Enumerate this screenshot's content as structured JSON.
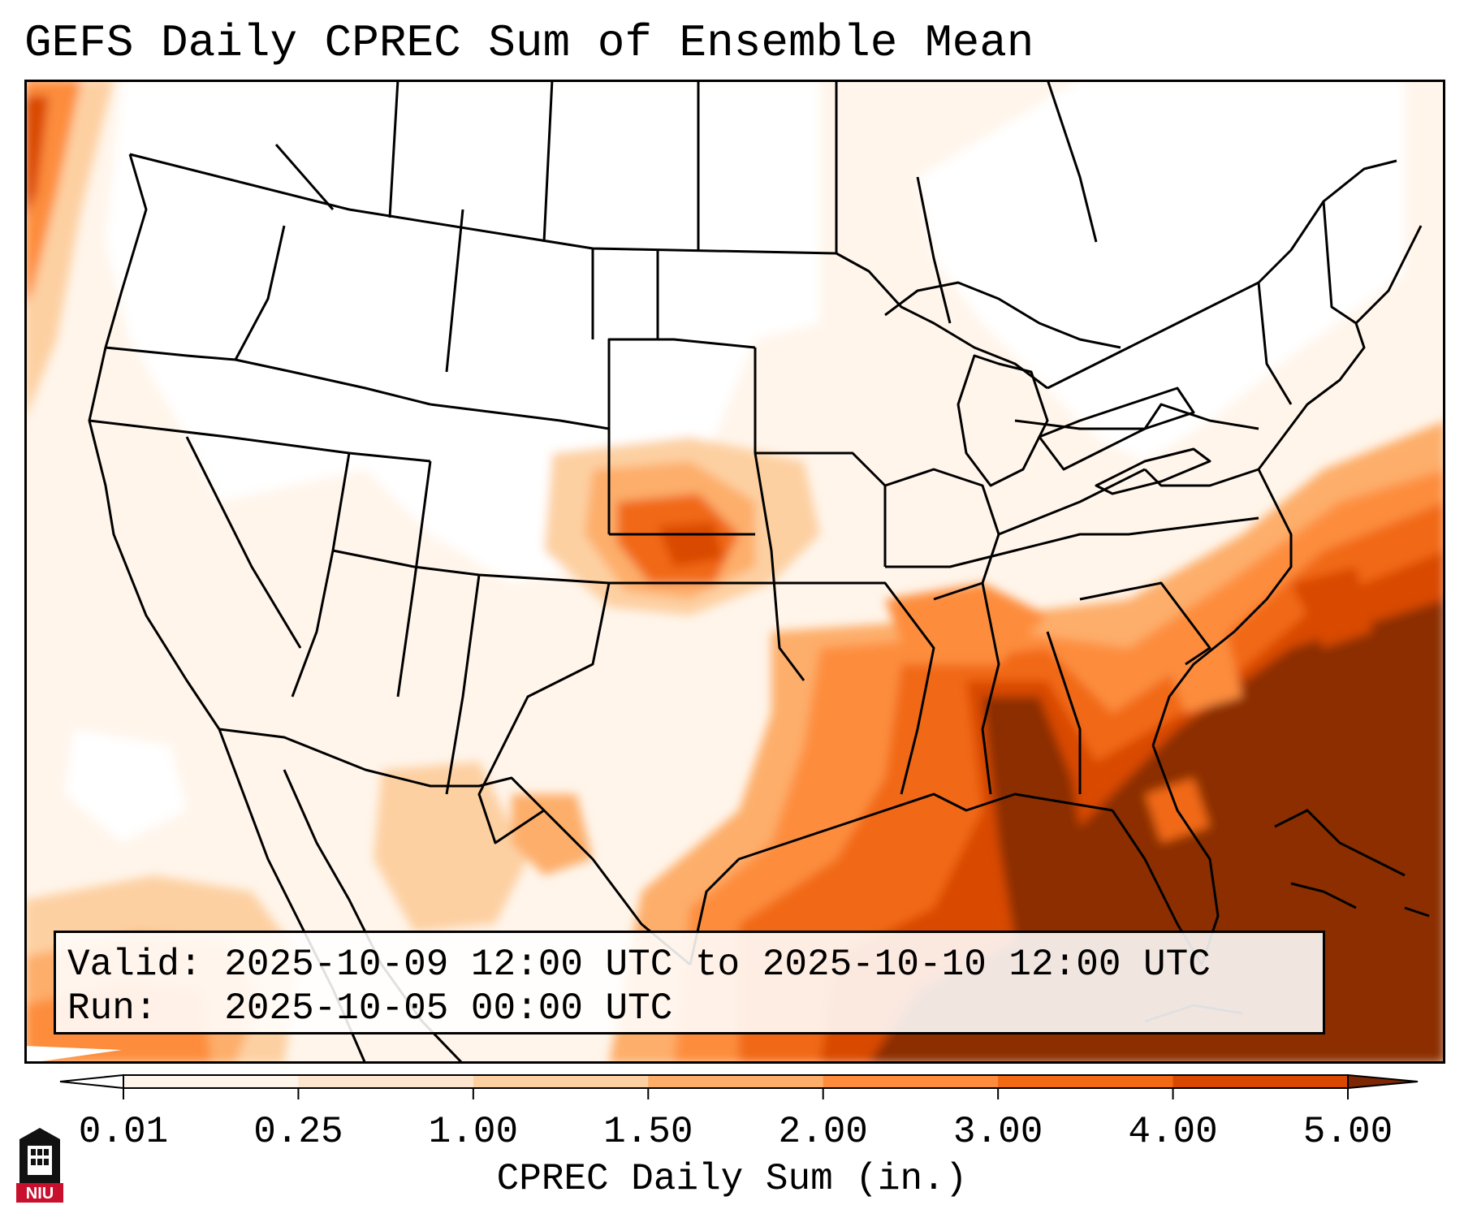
{
  "title": "GEFS Daily CPREC Sum of Ensemble Mean",
  "info": {
    "valid_label": "Valid:",
    "valid_value": "2025-10-09 12:00 UTC to 2025-10-10 12:00 UTC",
    "run_label": "Run:",
    "run_value": "2025-10-05 00:00 UTC"
  },
  "colorbar": {
    "label": "CPREC Daily Sum (in.)",
    "ticks": [
      "0.01",
      "0.25",
      "1.00",
      "1.50",
      "2.00",
      "3.00",
      "4.00",
      "5.00"
    ],
    "colors": [
      "#fff5eb",
      "#fee6ce",
      "#fdd0a2",
      "#fdae6b",
      "#fd8d3c",
      "#f16913",
      "#d94801",
      "#8c2d04"
    ],
    "under_color": "#ffffff",
    "over_color": "#7f2704"
  },
  "logo": {
    "text": "NIU",
    "color": "#c8102e",
    "icon": "university-tower-icon"
  }
}
